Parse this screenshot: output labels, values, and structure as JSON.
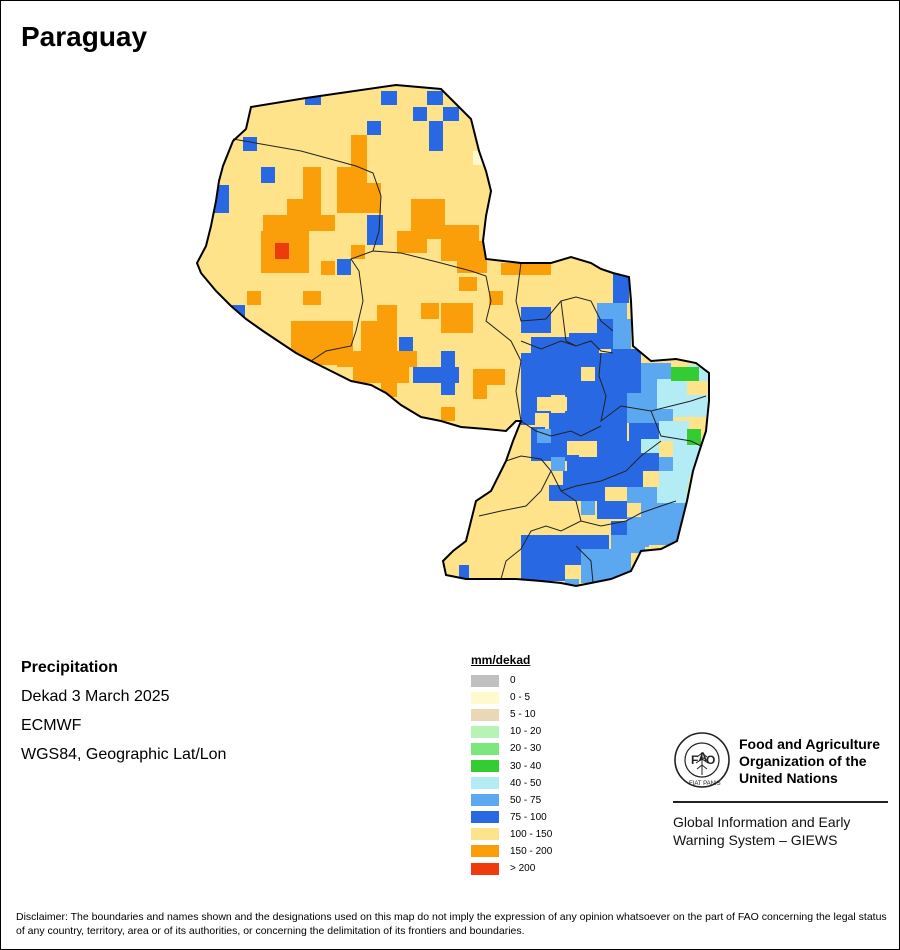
{
  "title": "Paraguay",
  "info": {
    "variable": "Precipitation",
    "period": "Dekad 3 March 2025",
    "source": "ECMWF",
    "projection": "WGS84, Geographic Lat/Lon"
  },
  "legend": {
    "title": "mm/dekad",
    "items": [
      {
        "label": "0",
        "color": "#c0c0c0"
      },
      {
        "label": "0 - 5",
        "color": "#fffacd"
      },
      {
        "label": "5 - 10",
        "color": "#ead7b6"
      },
      {
        "label": "10 - 20",
        "color": "#b7f2b7"
      },
      {
        "label": "20 - 30",
        "color": "#7ce77c"
      },
      {
        "label": "30 - 40",
        "color": "#33cc33"
      },
      {
        "label": "40 - 50",
        "color": "#b3ecf5"
      },
      {
        "label": "50 - 75",
        "color": "#5ba8f0"
      },
      {
        "label": "75 - 100",
        "color": "#2869e3"
      },
      {
        "label": "100 - 150",
        "color": "#fee38a"
      },
      {
        "label": "150 - 200",
        "color": "#fa9e0a"
      },
      {
        "label": "> 200",
        "color": "#ee3a0c"
      }
    ]
  },
  "organization": {
    "name_line1": "Food and Agriculture",
    "name_line2": "Organization of the",
    "name_line3": "United Nations",
    "system_line1": "Global Information and Early",
    "system_line2": "Warning System – GIEWS",
    "logo_text": "FIAT PANIS"
  },
  "disclaimer": "Disclaimer: The boundaries and names shown and the designations used on this map do not imply the expression of any opinion whatsoever on the part of FAO concerning the legal status of any country, territory, area or of its authorities, or concerning the delimitation of its frontiers and boundaries."
}
